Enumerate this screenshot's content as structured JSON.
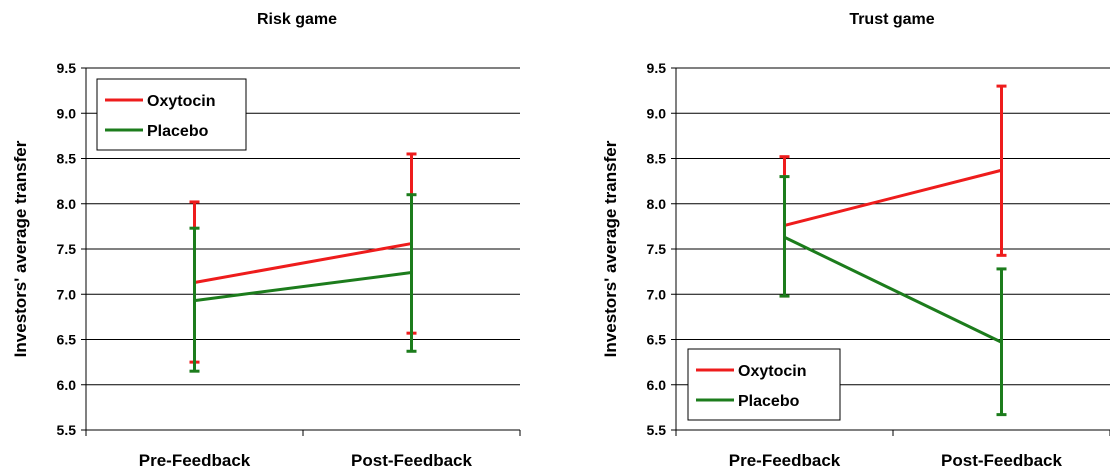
{
  "colors": {
    "oxytocin": "#ee1c1c",
    "placebo": "#1c7c1c",
    "grid": "#000000",
    "background": "#ffffff"
  },
  "chart_data": [
    {
      "type": "line",
      "title": "Risk game",
      "xlabel": "",
      "ylabel": "Investors' average transfer",
      "categories": [
        "Pre-Feedback",
        "Post-Feedback"
      ],
      "ylim": [
        5.5,
        9.5
      ],
      "yticks": [
        "5.5",
        "6.0",
        "6.5",
        "7.0",
        "7.5",
        "8.0",
        "8.5",
        "9.0",
        "9.5"
      ],
      "grid": true,
      "legend": "top-left",
      "series": [
        {
          "name": "Oxytocin",
          "color": "#ee1c1c",
          "values": [
            7.13,
            7.56
          ],
          "err_low": [
            6.25,
            6.57
          ],
          "err_high": [
            8.02,
            8.55
          ]
        },
        {
          "name": "Placebo",
          "color": "#1c7c1c",
          "values": [
            6.93,
            7.24
          ],
          "err_low": [
            6.15,
            6.37
          ],
          "err_high": [
            7.73,
            8.1
          ]
        }
      ]
    },
    {
      "type": "line",
      "title": "Trust game",
      "xlabel": "",
      "ylabel": "Investors' average transfer",
      "categories": [
        "Pre-Feedback",
        "Post-Feedback"
      ],
      "ylim": [
        5.5,
        9.5
      ],
      "yticks": [
        "5.5",
        "6.0",
        "6.5",
        "7.0",
        "7.5",
        "8.0",
        "8.5",
        "9.0",
        "9.5"
      ],
      "grid": true,
      "legend": "bottom-left",
      "series": [
        {
          "name": "Oxytocin",
          "color": "#ee1c1c",
          "values": [
            7.76,
            8.37
          ],
          "err_low": [
            6.98,
            7.43
          ],
          "err_high": [
            8.52,
            9.3
          ]
        },
        {
          "name": "Placebo",
          "color": "#1c7c1c",
          "values": [
            7.63,
            6.47
          ],
          "err_low": [
            6.98,
            5.67
          ],
          "err_high": [
            8.3,
            7.28
          ]
        }
      ]
    }
  ]
}
